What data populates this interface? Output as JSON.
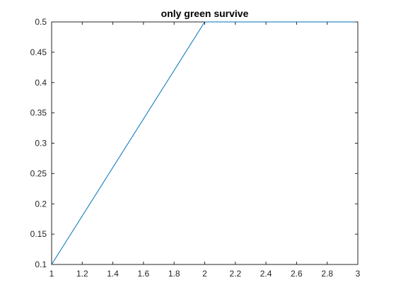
{
  "chart_data": {
    "type": "line",
    "title": "only green survive",
    "xlabel": "",
    "ylabel": "",
    "xlim": [
      1,
      3
    ],
    "ylim": [
      0.1,
      0.5
    ],
    "xticks": [
      1,
      1.2,
      1.4,
      1.6,
      1.8,
      2,
      2.2,
      2.4,
      2.6,
      2.8,
      3
    ],
    "xtick_labels": [
      "1",
      "1.2",
      "1.4",
      "1.6",
      "1.8",
      "2",
      "2.2",
      "2.4",
      "2.6",
      "2.8",
      "3"
    ],
    "yticks": [
      0.1,
      0.15,
      0.2,
      0.25,
      0.3,
      0.35,
      0.4,
      0.45,
      0.5
    ],
    "ytick_labels": [
      "0.1",
      "0.15",
      "0.2",
      "0.25",
      "0.3",
      "0.35",
      "0.4",
      "0.45",
      "0.5"
    ],
    "grid": false,
    "series": [
      {
        "color": "#0072BD",
        "x": [
          1,
          2,
          3
        ],
        "y": [
          0.1,
          0.5,
          0.5
        ]
      }
    ]
  }
}
